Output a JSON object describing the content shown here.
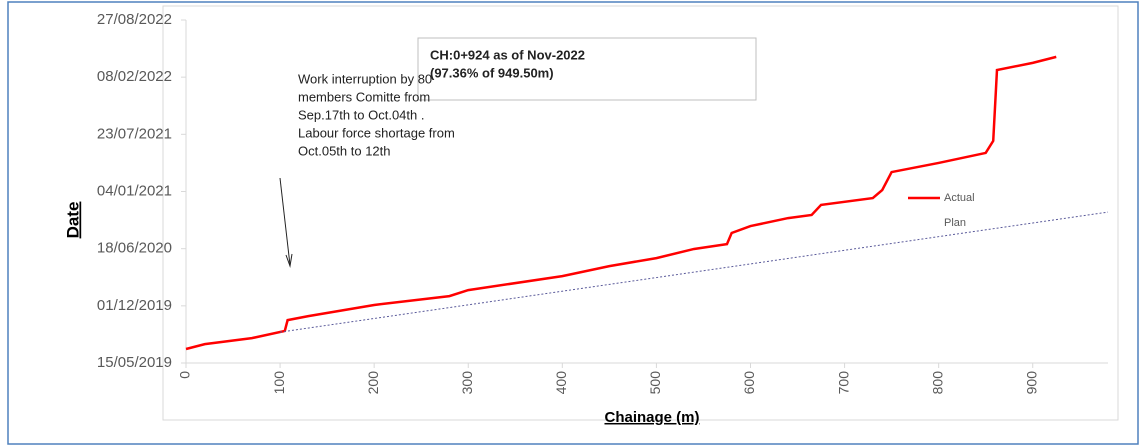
{
  "chart_data": {
    "type": "line",
    "x_label": "Chainage (m)",
    "y_label": "Date",
    "xlim": [
      0,
      980
    ],
    "xticks": [
      0,
      100,
      200,
      300,
      400,
      500,
      600,
      700,
      800,
      900
    ],
    "ylim": [
      "2019-05-15",
      "2022-08-27"
    ],
    "yticks": [
      {
        "value": "2019-05-15",
        "label": "15/05/2019"
      },
      {
        "value": "2019-12-01",
        "label": "01/12/2019"
      },
      {
        "value": "2020-06-18",
        "label": "18/06/2020"
      },
      {
        "value": "2021-01-04",
        "label": "04/01/2021"
      },
      {
        "value": "2021-07-23",
        "label": "23/07/2021"
      },
      {
        "value": "2022-02-08",
        "label": "08/02/2022"
      },
      {
        "value": "2022-08-27",
        "label": "27/08/2022"
      }
    ],
    "grid": false,
    "legend": "right",
    "series": [
      {
        "name": "Actual",
        "color": "#ff0000",
        "style": "solid",
        "x": [
          0,
          20,
          70,
          105,
          108,
          130,
          200,
          280,
          300,
          400,
          450,
          500,
          540,
          575,
          580,
          600,
          640,
          665,
          675,
          730,
          740,
          750,
          800,
          850,
          858,
          862,
          900,
          925
        ],
        "values": [
          "2019-07-03",
          "2019-07-20",
          "2019-08-10",
          "2019-09-04",
          "2019-10-12",
          "2019-10-26",
          "2019-12-04",
          "2020-01-04",
          "2020-01-25",
          "2020-03-14",
          "2020-04-18",
          "2020-05-16",
          "2020-06-17",
          "2020-07-04",
          "2020-08-12",
          "2020-09-05",
          "2020-10-03",
          "2020-10-14",
          "2020-11-18",
          "2020-12-12",
          "2021-01-09",
          "2021-03-13",
          "2021-04-14",
          "2021-05-19",
          "2021-06-30",
          "2022-03-05",
          "2022-03-30",
          "2022-04-20"
        ]
      },
      {
        "name": "Plan",
        "color": "#5a5a9a",
        "style": "dotted",
        "x": [
          100,
          980
        ],
        "values": [
          "2019-08-31",
          "2020-10-24"
        ]
      }
    ],
    "annotations": [
      {
        "lines": [
          "CH:0+924 as of  Nov-2022",
          "(97.36% of 949.50m)"
        ]
      },
      {
        "lines": [
          "Work interruption by 80",
          "members Comitte from",
          "Sep.17th to Oct.04th .",
          "Labour force shortage from",
          "Oct.05th to 12th"
        ]
      }
    ]
  }
}
